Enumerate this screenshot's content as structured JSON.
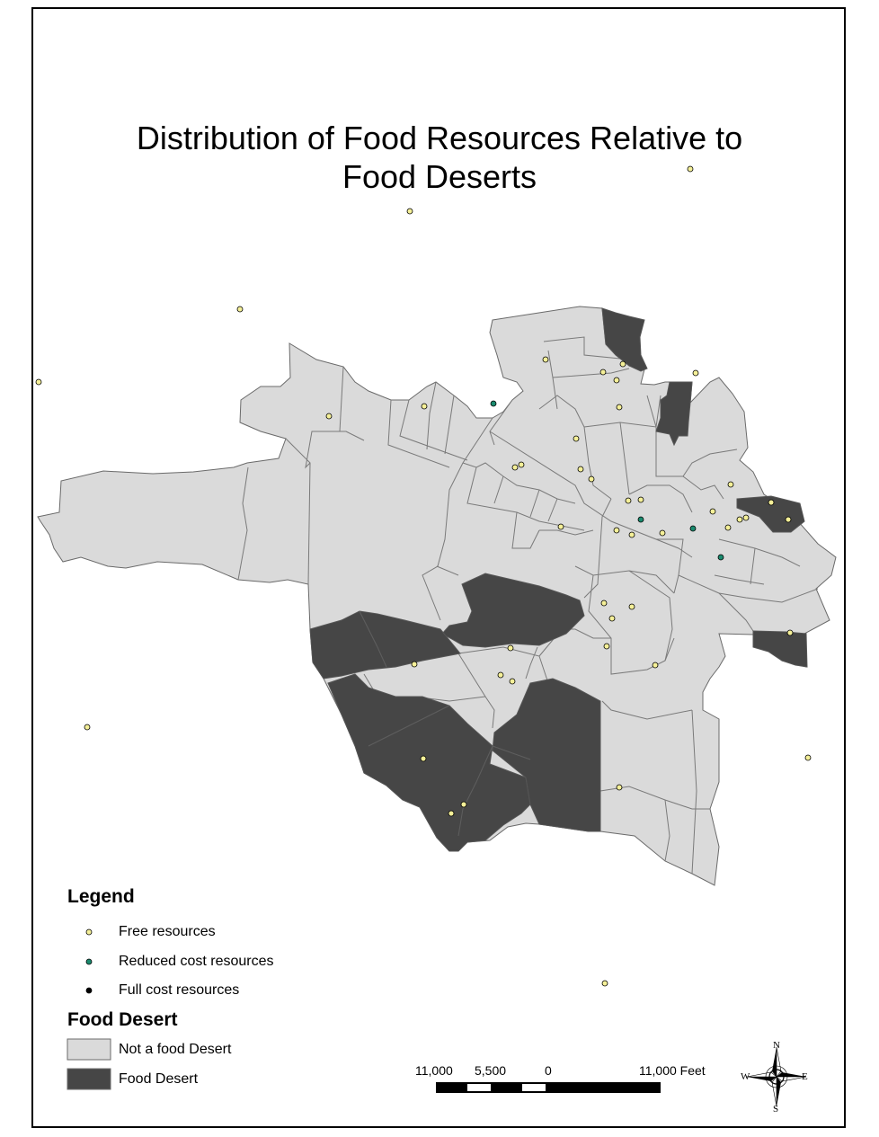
{
  "title": {
    "line1": "Distribution of Food Resources Relative to",
    "line2": "Food Deserts"
  },
  "legend": {
    "heading": "Legend",
    "resources": [
      {
        "label": "Free resources",
        "color": "#f5f098"
      },
      {
        "label": "Reduced cost resources",
        "color": "#1a8a6e"
      },
      {
        "label": "Full cost resources",
        "color": "#000000"
      }
    ],
    "desert_heading": "Food Desert",
    "desert_classes": [
      {
        "label": "Not a food Desert",
        "color": "#dadada"
      },
      {
        "label": "Food Desert",
        "color": "#464646"
      }
    ]
  },
  "scale_bar": {
    "labels": [
      "11,000",
      "5,500",
      "0",
      "11,000 Feet"
    ]
  },
  "north_arrow": {
    "n": "N",
    "s": "S",
    "e": "E",
    "w": "W"
  },
  "colors": {
    "not_desert": "#dadada",
    "desert": "#464646",
    "boundary": "#6a6a6a",
    "free": "#f5f098",
    "reduced": "#1a8a6e"
  }
}
